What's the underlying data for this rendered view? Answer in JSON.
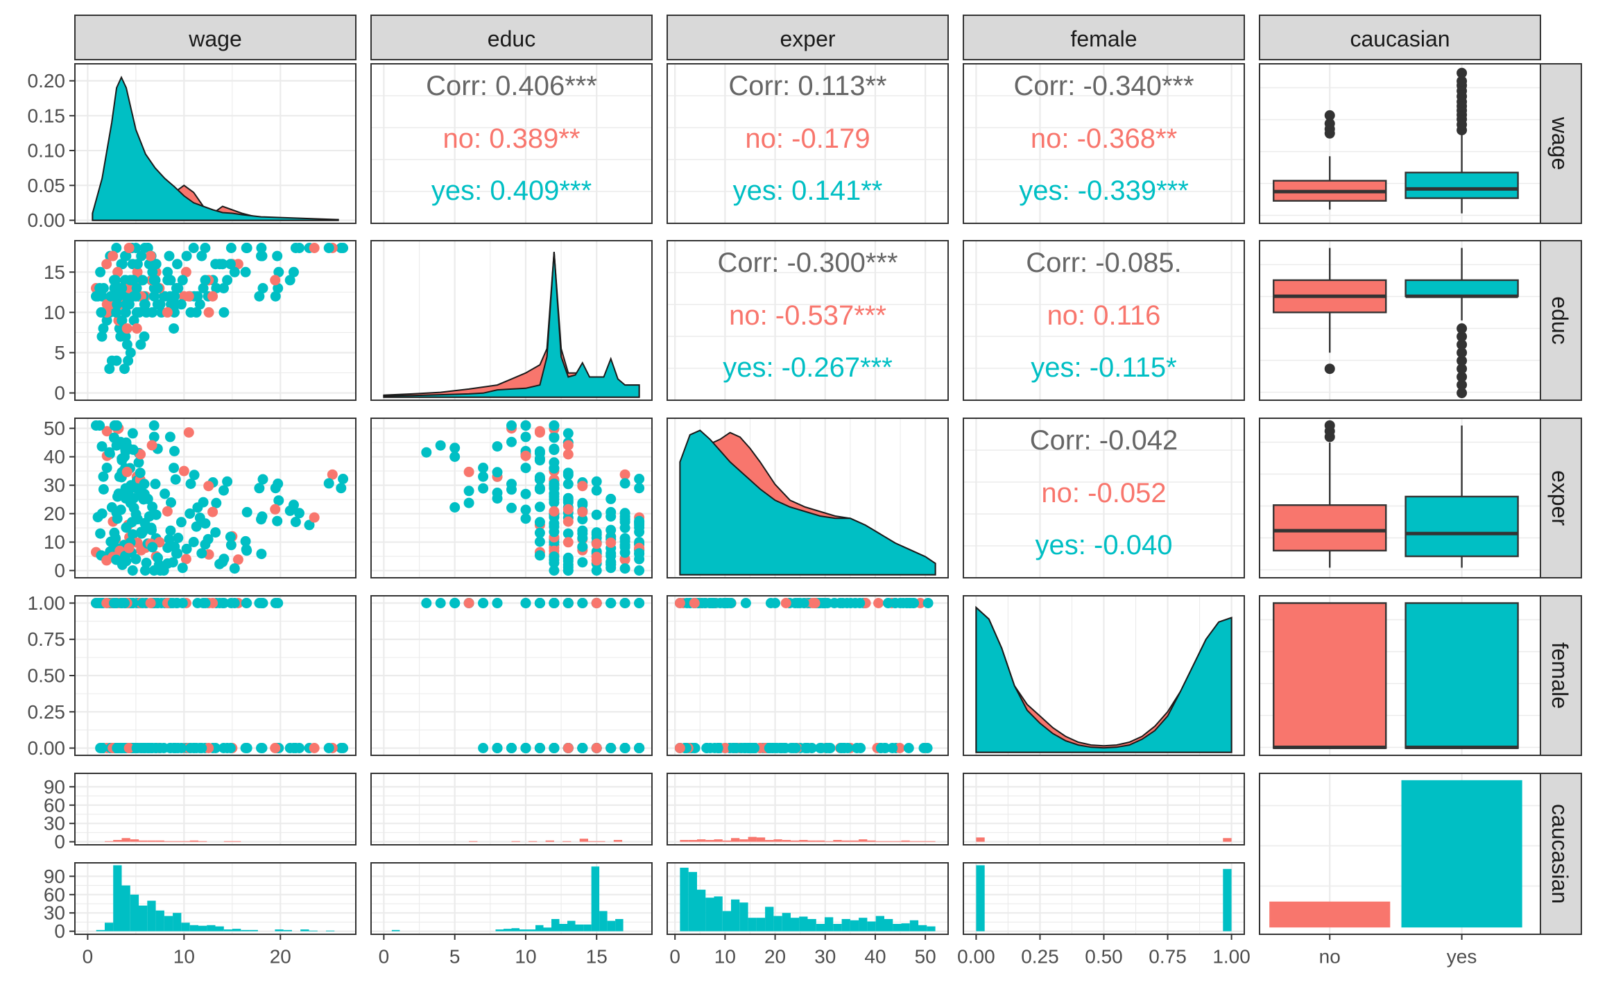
{
  "chart_data": {
    "type": "pairs",
    "title": "",
    "variables": [
      "wage",
      "educ",
      "exper",
      "female",
      "caucasian"
    ],
    "groups": [
      "no",
      "yes"
    ],
    "colors": {
      "no": "#F8766D",
      "yes": "#00BFC4",
      "overall": "#666666",
      "outline": "#1a1a1a",
      "strip": "#d9d9d9",
      "grid": "#ebebeb",
      "border": "#333333"
    },
    "correlations": [
      {
        "row": 0,
        "col": 1,
        "overall": "Corr: 0.406***",
        "no": "no: 0.389**",
        "yes": "yes: 0.409***"
      },
      {
        "row": 0,
        "col": 2,
        "overall": "Corr: 0.113**",
        "no": "no: -0.179",
        "yes": "yes: 0.141**"
      },
      {
        "row": 0,
        "col": 3,
        "overall": "Corr: -0.340***",
        "no": "no: -0.368**",
        "yes": "yes: -0.339***"
      },
      {
        "row": 1,
        "col": 2,
        "overall": "Corr: -0.300***",
        "no": "no: -0.537***",
        "yes": "yes: -0.267***"
      },
      {
        "row": 1,
        "col": 3,
        "overall": "Corr: -0.085.",
        "no": "no: 0.116",
        "yes": "yes: -0.115*"
      },
      {
        "row": 2,
        "col": 3,
        "overall": "Corr: -0.042",
        "no": "no: -0.052",
        "yes": "yes: -0.040"
      }
    ],
    "ranges": {
      "wage": [
        0,
        26.5
      ],
      "educ": [
        0,
        18
      ],
      "exper": [
        1,
        52
      ],
      "female": [
        0,
        1
      ]
    },
    "x_ticks": {
      "wage": [
        "0",
        "10",
        "20"
      ],
      "educ": [
        "0",
        "5",
        "10",
        "15"
      ],
      "exper": [
        "0",
        "10",
        "20",
        "30",
        "40",
        "50"
      ],
      "female": [
        "0.00",
        "0.25",
        "0.50",
        "0.75",
        "1.00"
      ],
      "caucasian": [
        "no",
        "yes"
      ]
    },
    "y_ticks": {
      "wage": [
        "0.00",
        "0.05",
        "0.10",
        "0.15",
        "0.20"
      ],
      "educ": [
        "0",
        "5",
        "10",
        "15"
      ],
      "exper": [
        "0",
        "10",
        "20",
        "30",
        "40",
        "50"
      ],
      "female": [
        "0.00",
        "0.25",
        "0.50",
        "0.75",
        "1.00"
      ],
      "caucasian_no": [
        "0",
        "30",
        "60",
        "90"
      ],
      "caucasian_yes": [
        "0",
        "30",
        "60",
        "90"
      ]
    },
    "density": {
      "wage": {
        "x": [
          0.5,
          1.5,
          2.5,
          3.0,
          3.5,
          4.0,
          4.5,
          5,
          6,
          7,
          8,
          9,
          10,
          11,
          12,
          13,
          14,
          15,
          16,
          18,
          20,
          22,
          24,
          26
        ],
        "no": [
          0.01,
          0.05,
          0.13,
          0.17,
          0.19,
          0.18,
          0.15,
          0.12,
          0.09,
          0.07,
          0.05,
          0.04,
          0.05,
          0.04,
          0.02,
          0.01,
          0.02,
          0.015,
          0.01,
          0.003,
          0.002,
          0.002,
          0.001,
          0.001
        ],
        "yes": [
          0.01,
          0.06,
          0.14,
          0.19,
          0.205,
          0.19,
          0.16,
          0.13,
          0.095,
          0.075,
          0.06,
          0.048,
          0.035,
          0.025,
          0.02,
          0.015,
          0.011,
          0.01,
          0.008,
          0.005,
          0.004,
          0.003,
          0.002,
          0.001
        ]
      },
      "educ": {
        "x": [
          0,
          2,
          4,
          6,
          7,
          8,
          9,
          10,
          11,
          11.5,
          12,
          12.5,
          13,
          13.5,
          14,
          14.5,
          15,
          15.5,
          16,
          16.5,
          17,
          18
        ],
        "no": [
          0.005,
          0.008,
          0.012,
          0.02,
          0.025,
          0.03,
          0.045,
          0.06,
          0.08,
          0.12,
          0.36,
          0.12,
          0.06,
          0.06,
          0.06,
          0.05,
          0.04,
          0.05,
          0.06,
          0.04,
          0.03,
          0.03
        ],
        "yes": [
          0.003,
          0.004,
          0.006,
          0.008,
          0.01,
          0.018,
          0.02,
          0.022,
          0.03,
          0.1,
          0.36,
          0.1,
          0.05,
          0.055,
          0.085,
          0.05,
          0.05,
          0.05,
          0.095,
          0.045,
          0.03,
          0.03
        ]
      },
      "exper": {
        "x": [
          1,
          3,
          5,
          7,
          9,
          11,
          13,
          15,
          17,
          20,
          23,
          26,
          29,
          32,
          35,
          38,
          41,
          44,
          47,
          50,
          52
        ],
        "no": [
          0.05,
          0.06,
          0.062,
          0.058,
          0.06,
          0.063,
          0.061,
          0.056,
          0.05,
          0.04,
          0.033,
          0.03,
          0.028,
          0.026,
          0.025,
          0.022,
          0.018,
          0.014,
          0.011,
          0.008,
          0.005
        ],
        "yes": [
          0.05,
          0.062,
          0.064,
          0.06,
          0.055,
          0.05,
          0.046,
          0.042,
          0.038,
          0.033,
          0.03,
          0.028,
          0.026,
          0.025,
          0.025,
          0.022,
          0.018,
          0.014,
          0.011,
          0.008,
          0.005
        ]
      },
      "female": {
        "x": [
          0,
          0.05,
          0.1,
          0.15,
          0.2,
          0.25,
          0.3,
          0.35,
          0.4,
          0.45,
          0.5,
          0.55,
          0.6,
          0.65,
          0.7,
          0.75,
          0.8,
          0.85,
          0.9,
          0.95,
          1.0
        ],
        "no": [
          1.0,
          0.92,
          0.72,
          0.46,
          0.33,
          0.25,
          0.17,
          0.11,
          0.07,
          0.05,
          0.045,
          0.05,
          0.07,
          0.11,
          0.18,
          0.28,
          0.42,
          0.6,
          0.78,
          0.9,
          0.93
        ],
        "yes": [
          1.0,
          0.92,
          0.72,
          0.46,
          0.29,
          0.2,
          0.13,
          0.08,
          0.05,
          0.035,
          0.03,
          0.035,
          0.05,
          0.09,
          0.15,
          0.25,
          0.42,
          0.6,
          0.78,
          0.9,
          0.93
        ]
      }
    },
    "box": {
      "wage": {
        "no": {
          "q1": 2.8,
          "med": 4.5,
          "q3": 6.5,
          "lo": 1.2,
          "hi": 11.0,
          "out": [
            15.2,
            16.0,
            17.0,
            18.5
          ]
        },
        "yes": {
          "q1": 3.3,
          "med": 5.0,
          "q3": 8.0,
          "lo": 0.5,
          "hi": 15.0,
          "out": [
            15.8,
            16.8,
            17.8,
            18.6,
            19.4,
            20.2,
            21.0,
            22.0,
            23.0,
            24.0,
            24.8,
            26.3
          ]
        }
      },
      "educ": {
        "no": {
          "q1": 10,
          "med": 12,
          "q3": 14,
          "lo": 5,
          "hi": 18,
          "out": [
            3
          ]
        },
        "yes": {
          "q1": 12,
          "med": 12,
          "q3": 14,
          "lo": 9,
          "hi": 18,
          "out": [
            0,
            1,
            2,
            3,
            4,
            5,
            6,
            7,
            8
          ]
        }
      },
      "exper": {
        "no": {
          "q1": 7,
          "med": 14,
          "q3": 23,
          "lo": 1,
          "hi": 45,
          "out": [
            47,
            49,
            51
          ]
        },
        "yes": {
          "q1": 5,
          "med": 13,
          "q3": 26,
          "lo": 1,
          "hi": 51,
          "out": []
        }
      },
      "female": {
        "no": {
          "q1": 0,
          "med": 0.005,
          "q3": 1,
          "lo": 0,
          "hi": 1,
          "out": []
        },
        "yes": {
          "q1": 0,
          "med": 0.005,
          "q3": 1,
          "lo": 0,
          "hi": 1,
          "out": []
        }
      }
    },
    "caucasian_counts": {
      "no": 19,
      "yes": 108
    },
    "hist": {
      "wage": {
        "bins": [
          0,
          26.5
        ],
        "no": [
          0,
          0,
          1,
          3,
          6,
          4,
          2,
          2,
          2,
          1,
          1,
          1,
          2,
          1,
          0,
          0,
          1,
          1,
          0,
          0,
          0,
          0,
          0,
          0,
          0,
          0,
          0,
          0,
          0,
          0
        ],
        "yes": [
          0,
          2,
          14,
          108,
          75,
          60,
          42,
          50,
          34,
          25,
          30,
          14,
          10,
          9,
          10,
          8,
          3,
          4,
          2,
          2,
          0,
          0,
          3,
          2,
          0,
          3,
          1,
          0,
          1,
          0
        ]
      },
      "educ": {
        "bins": [
          0,
          18
        ],
        "no": [
          0,
          0,
          0,
          0,
          0,
          0,
          0,
          0,
          0,
          0,
          1,
          0,
          0,
          0,
          0,
          1,
          0,
          1,
          0,
          2,
          0,
          1,
          0,
          5,
          1,
          1,
          0,
          3,
          0,
          0
        ],
        "yes": [
          0,
          2,
          0,
          0,
          0,
          0,
          0,
          0,
          0,
          0,
          0,
          0,
          0,
          0,
          3,
          4,
          5,
          3,
          3,
          10,
          6,
          20,
          12,
          17,
          11,
          11,
          106,
          33,
          17,
          20,
          0,
          0
        ]
      },
      "exper": {
        "bins": [
          1,
          52
        ],
        "no": [
          3,
          3,
          4,
          3,
          4,
          2,
          6,
          4,
          8,
          7,
          3,
          4,
          3,
          2,
          3,
          2,
          2,
          1,
          3,
          2,
          2,
          4,
          2,
          1,
          1,
          1,
          2,
          1,
          1,
          1
        ],
        "yes": [
          104,
          97,
          68,
          55,
          57,
          33,
          52,
          47,
          22,
          22,
          40,
          25,
          30,
          22,
          24,
          20,
          12,
          23,
          12,
          20,
          18,
          22,
          16,
          25,
          20,
          12,
          13,
          18,
          10,
          8
        ]
      },
      "female": {
        "bins": [
          0,
          1
        ],
        "no": [
          7,
          0,
          0,
          0,
          0,
          0,
          0,
          0,
          0,
          0,
          0,
          0,
          0,
          0,
          0,
          0,
          0,
          0,
          0,
          0,
          0,
          0,
          0,
          0,
          0,
          0,
          0,
          0,
          0,
          6
        ],
        "yes": [
          108,
          0,
          0,
          0,
          0,
          0,
          0,
          0,
          0,
          0,
          0,
          0,
          0,
          0,
          0,
          0,
          0,
          0,
          0,
          0,
          0,
          0,
          0,
          0,
          0,
          0,
          0,
          0,
          0,
          102
        ]
      }
    },
    "scatter": {
      "wage": [
        1.5,
        2.3,
        2.6,
        2.9,
        3.1,
        3.3,
        3.5,
        3.8,
        4.0,
        4.2,
        4.5,
        4.8,
        5.0,
        5.3,
        5.6,
        6.0,
        6.4,
        6.9,
        7.4,
        8.0,
        8.6,
        9.3,
        10.0,
        11.0,
        12.0,
        13.0,
        14.0,
        15.0,
        16.5,
        18.0,
        19.5,
        21.0,
        23.0,
        26.3,
        2.0,
        3.6,
        4.4,
        5.8,
        7.1,
        9.0,
        12.5,
        3.2,
        4.1,
        6.6,
        2.7,
        5.1,
        8.3,
        10.6,
        3.0,
        4.6
      ],
      "educ": [
        12,
        10,
        12,
        14,
        12,
        8,
        16,
        12,
        13,
        11,
        12,
        9,
        18,
        12,
        14,
        12,
        16,
        12,
        13,
        12,
        14,
        16,
        12,
        18,
        13,
        14,
        16,
        16,
        18,
        17,
        12,
        14,
        18,
        18,
        11,
        16,
        12,
        12,
        15,
        10,
        12,
        9,
        6,
        17,
        12,
        8,
        14,
        12,
        4,
        18
      ],
      "exper": [
        20,
        41,
        5,
        11,
        26,
        33,
        3,
        9,
        45,
        16,
        30,
        22,
        4,
        38,
        13,
        8,
        19,
        47,
        2,
        27,
        14,
        6,
        35,
        10,
        24,
        31,
        3,
        12,
        7,
        18,
        29,
        21,
        16,
        29,
        49,
        2,
        36,
        25,
        5,
        42,
        11,
        50,
        28,
        15,
        10,
        33,
        8,
        20,
        44,
        17
      ],
      "female": [
        1,
        0,
        1,
        0,
        0,
        1,
        1,
        0,
        1,
        0,
        1,
        0,
        0,
        1,
        0,
        1,
        0,
        1,
        0,
        1,
        0,
        1,
        0,
        0,
        1,
        0,
        1,
        0,
        1,
        0,
        1,
        0,
        0,
        0,
        1,
        0,
        1,
        0,
        1,
        0,
        1,
        0,
        1,
        0,
        1,
        0,
        1,
        0,
        1,
        0
      ],
      "group": [
        "yes",
        "yes",
        "yes",
        "no",
        "yes",
        "yes",
        "yes",
        "yes",
        "yes",
        "no",
        "yes",
        "yes",
        "yes",
        "yes",
        "yes",
        "no",
        "yes",
        "yes",
        "yes",
        "yes",
        "yes",
        "yes",
        "no",
        "yes",
        "yes",
        "yes",
        "yes",
        "no",
        "yes",
        "yes",
        "yes",
        "yes",
        "yes",
        "yes",
        "no",
        "yes",
        "yes",
        "yes",
        "no",
        "yes",
        "yes",
        "no",
        "yes",
        "yes",
        "yes",
        "no",
        "yes",
        "yes",
        "yes",
        "yes"
      ]
    }
  }
}
